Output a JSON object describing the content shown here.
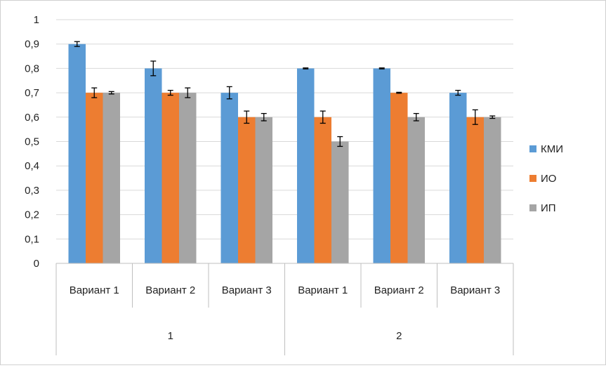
{
  "chart_data": {
    "type": "bar",
    "ylim": [
      0,
      1
    ],
    "yticks": [
      "0",
      "0,1",
      "0,2",
      "0,3",
      "0,4",
      "0,5",
      "0,6",
      "0,7",
      "0,8",
      "0,9",
      "1"
    ],
    "grid": true,
    "legend_position": "right",
    "groups": [
      {
        "label": "1",
        "categories": [
          "Вариант 1",
          "Вариант 2",
          "Вариант 3"
        ]
      },
      {
        "label": "2",
        "categories": [
          "Вариант 1",
          "Вариант 2",
          "Вариант 3"
        ]
      }
    ],
    "series": [
      {
        "name": "КМИ",
        "color": "#5b9bd5",
        "values": [
          0.9,
          0.8,
          0.7,
          0.8,
          0.8,
          0.7
        ],
        "errors": [
          0.01,
          0.03,
          0.025,
          0.002,
          0.002,
          0.01
        ]
      },
      {
        "name": "ИО",
        "color": "#ed7d31",
        "values": [
          0.7,
          0.7,
          0.6,
          0.6,
          0.7,
          0.6
        ],
        "errors": [
          0.02,
          0.01,
          0.025,
          0.025,
          0.002,
          0.03
        ]
      },
      {
        "name": "ИП",
        "color": "#a5a5a5",
        "values": [
          0.7,
          0.7,
          0.6,
          0.5,
          0.6,
          0.6
        ],
        "errors": [
          0.005,
          0.02,
          0.015,
          0.02,
          0.015,
          0.005
        ]
      }
    ]
  }
}
